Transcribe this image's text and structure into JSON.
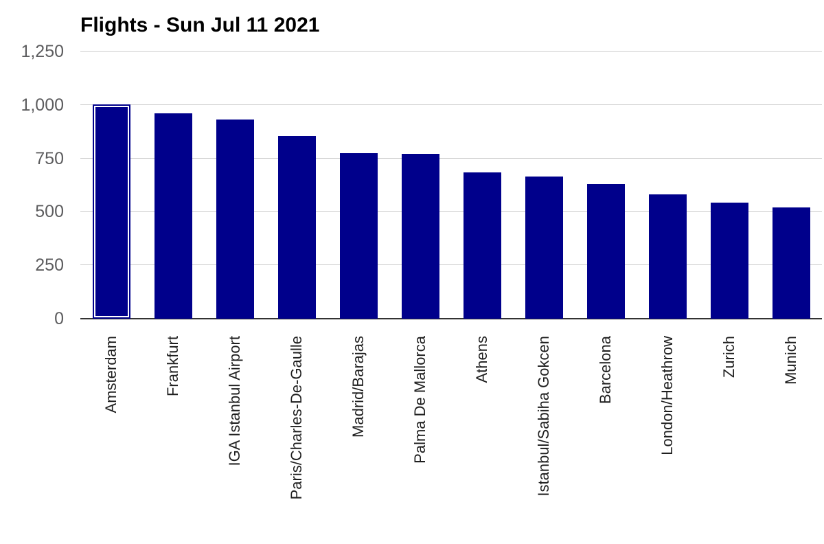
{
  "chart": {
    "title": "Flights - Sun Jul 11 2021",
    "colors": {
      "bar": "#00008b",
      "selection_ring": "#ffffff",
      "gridline": "#cccccc",
      "baseline": "#333333",
      "y_label": "#5c5c5e",
      "x_label": "#1f1f1f",
      "title": "#000000",
      "background": "#ffffff"
    },
    "selected_index": 0
  },
  "chart_data": {
    "type": "bar",
    "title": "Flights - Sun Jul 11 2021",
    "categories": [
      "Amsterdam",
      "Frankfurt",
      "IGA Istanbul Airport",
      "Paris/Charles-De-Gaulle",
      "Madrid/Barajas",
      "Palma De Mallorca",
      "Athens",
      "Istanbul/Sabiha Gokcen",
      "Barcelona",
      "London/Heathrow",
      "Zurich",
      "Munich"
    ],
    "values": [
      1004,
      960,
      933,
      856,
      776,
      772,
      683,
      666,
      631,
      583,
      542,
      520
    ],
    "xlabel": "",
    "ylabel": "",
    "ylim": [
      0,
      1250
    ],
    "yticks": [
      0,
      250,
      500,
      750,
      1000,
      1250
    ],
    "ytick_labels": [
      "0",
      "250",
      "500",
      "750",
      "1,000",
      "1,250"
    ],
    "grid": true,
    "legend_position": "none",
    "selected_category": "Amsterdam",
    "bar_orientation": "vertical",
    "x_label_rotation_deg": -90
  }
}
